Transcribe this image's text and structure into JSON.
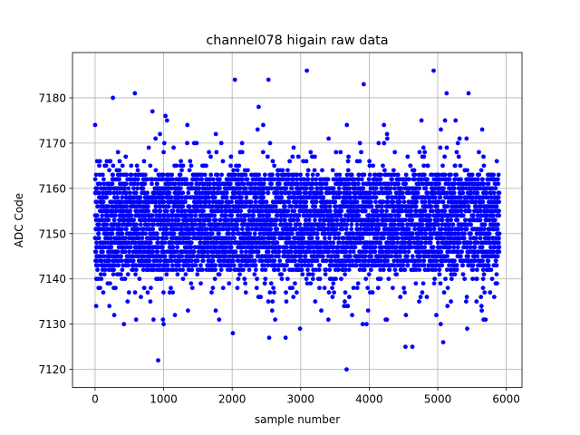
{
  "chart_data": {
    "type": "scatter",
    "title": "channel078 higain raw data",
    "xlabel": "sample number",
    "ylabel": "ADC Code",
    "xlim": [
      -330,
      6230
    ],
    "ylim": [
      7116,
      7190
    ],
    "xticks": [
      0,
      1000,
      2000,
      3000,
      4000,
      5000,
      6000
    ],
    "yticks": [
      7120,
      7130,
      7140,
      7150,
      7160,
      7170,
      7180
    ],
    "grid": true,
    "marker_color": "#0000ff",
    "n_samples": 5900,
    "x_range": [
      0,
      5899
    ],
    "points_sample": [
      {
        "x": 0,
        "y": 7174
      },
      {
        "x": 15,
        "y": 7134
      },
      {
        "x": 30,
        "y": 7166
      },
      {
        "x": 260,
        "y": 7180
      },
      {
        "x": 420,
        "y": 7130
      },
      {
        "x": 580,
        "y": 7181
      },
      {
        "x": 920,
        "y": 7122
      },
      {
        "x": 990,
        "y": 7131
      },
      {
        "x": 1000,
        "y": 7130
      },
      {
        "x": 1050,
        "y": 7175
      },
      {
        "x": 1810,
        "y": 7131
      },
      {
        "x": 2010,
        "y": 7128
      },
      {
        "x": 2040,
        "y": 7184
      },
      {
        "x": 2530,
        "y": 7184
      },
      {
        "x": 2540,
        "y": 7127
      },
      {
        "x": 2780,
        "y": 7127
      },
      {
        "x": 3090,
        "y": 7186
      },
      {
        "x": 3670,
        "y": 7120
      },
      {
        "x": 3920,
        "y": 7183
      },
      {
        "x": 4530,
        "y": 7125
      },
      {
        "x": 4630,
        "y": 7125
      },
      {
        "x": 4940,
        "y": 7186
      },
      {
        "x": 5080,
        "y": 7126
      },
      {
        "x": 5130,
        "y": 7181
      },
      {
        "x": 5450,
        "y": 7181
      }
    ],
    "distribution": {
      "center": 7152,
      "dense_band": [
        7142,
        7163
      ],
      "common_values": [
        7134,
        7135,
        7137,
        7138,
        7139,
        7140,
        7141,
        7142,
        7143,
        7144,
        7145,
        7146,
        7147,
        7148,
        7149,
        7150,
        7151,
        7152,
        7153,
        7154,
        7155,
        7156,
        7157,
        7158,
        7159,
        7160,
        7161,
        7162,
        7163,
        7164,
        7165,
        7166,
        7167,
        7168,
        7169,
        7170,
        7171,
        7172,
        7173,
        7174,
        7175,
        7176,
        7177,
        7178
      ],
      "seed": 78
    }
  }
}
